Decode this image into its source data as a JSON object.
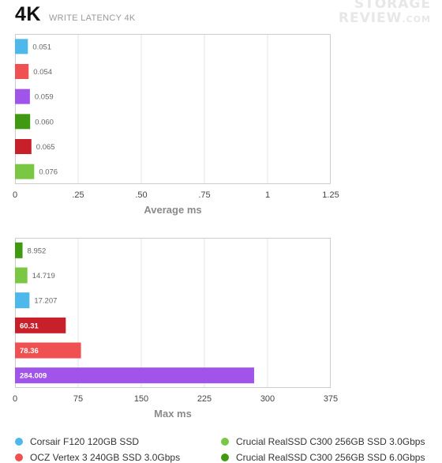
{
  "header": {
    "title": "4K",
    "subtitle": "WRITE LATENCY 4K",
    "watermark_line1": "STORAGE",
    "watermark_line2": "REVIEW",
    "watermark_suffix": ".COM"
  },
  "colors": {
    "corsair": "#4eb8ea",
    "ocz": "#ef5052",
    "purple": "#a054ea",
    "c300_6g": "#3f9a12",
    "darkred": "#c8202a",
    "c300_3g": "#79c742",
    "grid": "#e6e6e6",
    "border": "#cccccc",
    "axis_text": "#444444",
    "label_text": "#666666"
  },
  "chart_data": [
    {
      "type": "bar",
      "orientation": "horizontal",
      "xlabel": "Average ms",
      "xlim": [
        0,
        1.25
      ],
      "xticks": [
        0,
        0.25,
        0.5,
        0.75,
        1,
        1.25
      ],
      "xtick_labels": [
        "0",
        ".25",
        ".50",
        ".75",
        "1",
        "1.25"
      ],
      "grid": true,
      "bars": [
        {
          "value": 0.051,
          "label": "0.051",
          "color": "#4eb8ea"
        },
        {
          "value": 0.054,
          "label": "0.054",
          "color": "#ef5052"
        },
        {
          "value": 0.059,
          "label": "0.059",
          "color": "#a054ea"
        },
        {
          "value": 0.06,
          "label": "0.060",
          "color": "#3f9a12"
        },
        {
          "value": 0.065,
          "label": "0.065",
          "color": "#c8202a"
        },
        {
          "value": 0.076,
          "label": "0.076",
          "color": "#79c742"
        }
      ]
    },
    {
      "type": "bar",
      "orientation": "horizontal",
      "xlabel": "Max ms",
      "xlim": [
        0,
        375
      ],
      "xticks": [
        0,
        75,
        150,
        225,
        300,
        375
      ],
      "xtick_labels": [
        "0",
        "75",
        "150",
        "225",
        "300",
        "375"
      ],
      "grid": true,
      "bars": [
        {
          "value": 8.952,
          "label": "8.952",
          "color": "#3f9a12"
        },
        {
          "value": 14.719,
          "label": "14.719",
          "color": "#79c742"
        },
        {
          "value": 17.207,
          "label": "17.207",
          "color": "#4eb8ea"
        },
        {
          "value": 60.31,
          "label": "60.31",
          "color": "#c8202a"
        },
        {
          "value": 78.36,
          "label": "78.36",
          "color": "#ef5052"
        },
        {
          "value": 284.009,
          "label": "284.009",
          "color": "#a054ea"
        }
      ]
    }
  ],
  "legend": [
    {
      "label": "Corsair F120 120GB SSD",
      "color": "#4eb8ea"
    },
    {
      "label": "Crucial RealSSD C300 256GB SSD 3.0Gbps",
      "color": "#79c742"
    },
    {
      "label": "OCZ Vertex 3 240GB SSD 3.0Gbps",
      "color": "#ef5052"
    },
    {
      "label": "Crucial RealSSD C300 256GB SSD 6.0Gbps",
      "color": "#3f9a12"
    }
  ]
}
